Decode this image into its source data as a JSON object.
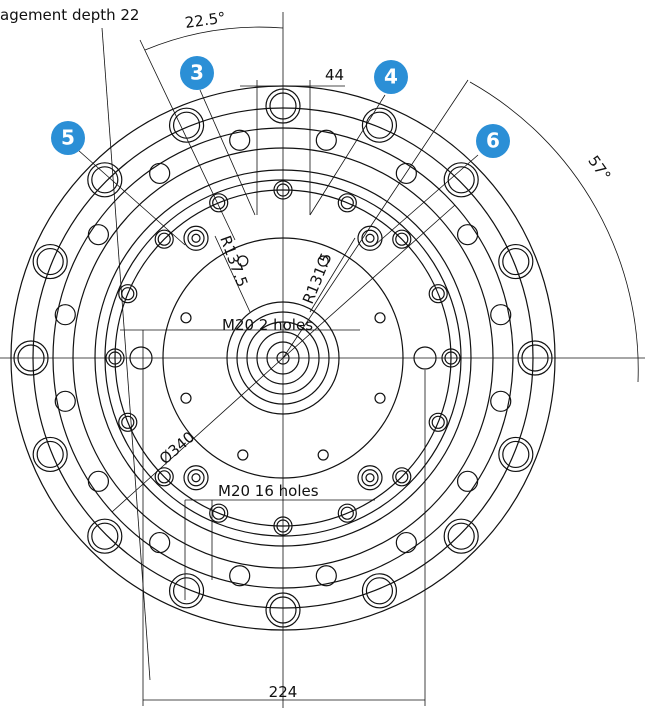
{
  "labels": {
    "engagement_depth": "agement depth 22",
    "angle_22_5": "22.5°",
    "dim_44": "44",
    "angle_57": "57°",
    "r137": "R137.5",
    "r131": "R131.5",
    "m20_2": "M20 2 holes",
    "dia340": "Ø340",
    "m20_16": "M20 16 holes",
    "dim_224": "224"
  },
  "callouts": [
    "3",
    "4",
    "5",
    "6"
  ]
}
